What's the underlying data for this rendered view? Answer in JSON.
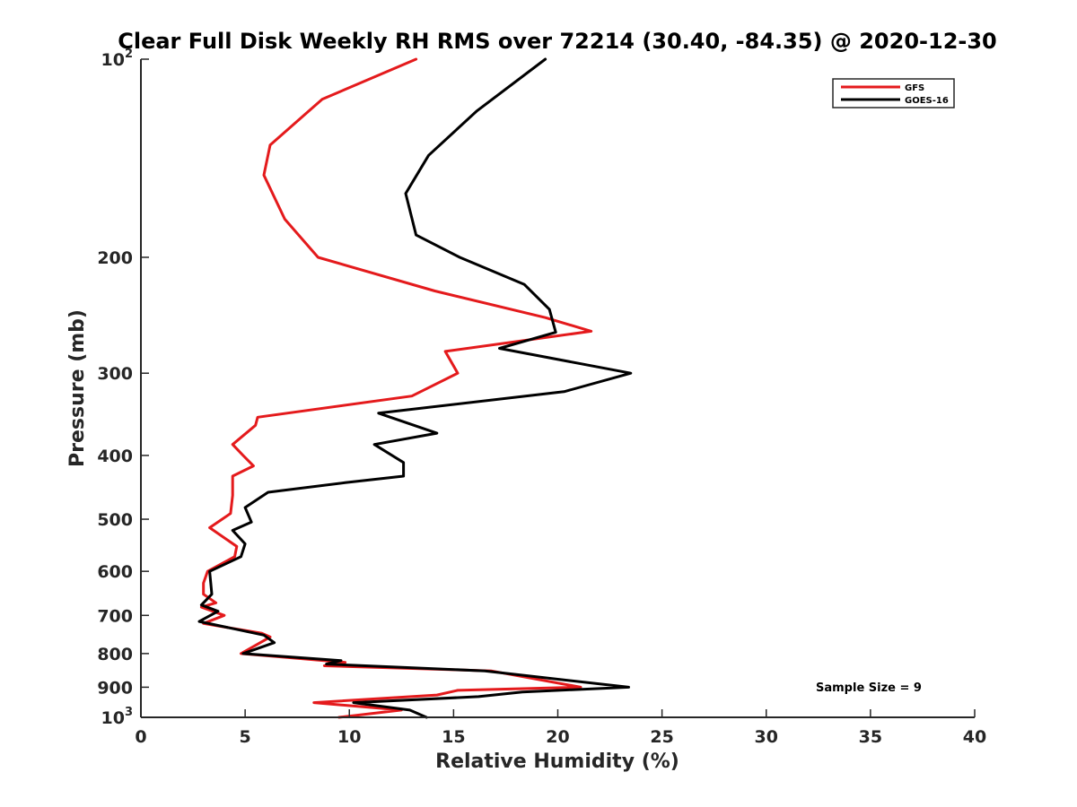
{
  "chart_data": {
    "type": "line",
    "title": "Clear Full Disk Weekly RH RMS over 72214 (30.40, -84.35) @ 2020-12-30",
    "xlabel": "Relative Humidity (%)",
    "ylabel": "Pressure (mb)",
    "xlim": [
      0,
      40
    ],
    "ylim": [
      100,
      1000
    ],
    "yscale": "log",
    "y_reversed": true,
    "grid": false,
    "legend_position": "top-right",
    "x_ticks": [
      {
        "value": 0,
        "label": "0"
      },
      {
        "value": 5,
        "label": "5"
      },
      {
        "value": 10,
        "label": "10"
      },
      {
        "value": 15,
        "label": "15"
      },
      {
        "value": 20,
        "label": "20"
      },
      {
        "value": 25,
        "label": "25"
      },
      {
        "value": 30,
        "label": "30"
      },
      {
        "value": 35,
        "label": "35"
      },
      {
        "value": 40,
        "label": "40"
      }
    ],
    "y_ticks": [
      {
        "value": 100,
        "base": "10",
        "exp": "2"
      },
      {
        "value": 200,
        "base": "200",
        "exp": ""
      },
      {
        "value": 300,
        "base": "300",
        "exp": ""
      },
      {
        "value": 400,
        "base": "400",
        "exp": ""
      },
      {
        "value": 500,
        "base": "500",
        "exp": ""
      },
      {
        "value": 600,
        "base": "600",
        "exp": ""
      },
      {
        "value": 700,
        "base": "700",
        "exp": ""
      },
      {
        "value": 800,
        "base": "800",
        "exp": ""
      },
      {
        "value": 900,
        "base": "900",
        "exp": ""
      },
      {
        "value": 1000,
        "base": "10",
        "exp": "3"
      }
    ],
    "annotation": "Sample Size = 9",
    "series": [
      {
        "name": "GFS",
        "color": "#e41a1c",
        "points": [
          [
            13.2,
            100
          ],
          [
            8.7,
            115
          ],
          [
            6.2,
            135
          ],
          [
            5.9,
            150
          ],
          [
            6.9,
            175
          ],
          [
            8.5,
            200
          ],
          [
            14.1,
            225
          ],
          [
            19.4,
            247
          ],
          [
            21.6,
            259
          ],
          [
            14.6,
            278
          ],
          [
            15.2,
            300
          ],
          [
            13.0,
            325
          ],
          [
            5.6,
            350
          ],
          [
            5.5,
            360
          ],
          [
            4.4,
            385
          ],
          [
            4.9,
            400
          ],
          [
            5.4,
            415
          ],
          [
            4.4,
            430
          ],
          [
            4.4,
            460
          ],
          [
            4.3,
            490
          ],
          [
            3.3,
            515
          ],
          [
            4.6,
            550
          ],
          [
            4.5,
            570
          ],
          [
            3.2,
            600
          ],
          [
            3.0,
            625
          ],
          [
            3.0,
            650
          ],
          [
            3.6,
            670
          ],
          [
            2.9,
            680
          ],
          [
            4.0,
            700
          ],
          [
            3.0,
            720
          ],
          [
            5.8,
            745
          ],
          [
            6.2,
            755
          ],
          [
            4.8,
            800
          ],
          [
            8.8,
            820
          ],
          [
            9.8,
            825
          ],
          [
            8.8,
            835
          ],
          [
            16.8,
            850
          ],
          [
            21.1,
            900
          ],
          [
            15.2,
            910
          ],
          [
            14.2,
            925
          ],
          [
            8.3,
            950
          ],
          [
            12.5,
            975
          ],
          [
            9.5,
            1000
          ]
        ]
      },
      {
        "name": "GOES-16",
        "color": "#000000",
        "points": [
          [
            19.4,
            100
          ],
          [
            16.1,
            120
          ],
          [
            13.8,
            140
          ],
          [
            12.7,
            160
          ],
          [
            13.2,
            185
          ],
          [
            15.3,
            200
          ],
          [
            18.4,
            220
          ],
          [
            19.6,
            240
          ],
          [
            19.9,
            260
          ],
          [
            17.2,
            275
          ],
          [
            23.5,
            300
          ],
          [
            20.3,
            320
          ],
          [
            11.4,
            345
          ],
          [
            14.2,
            370
          ],
          [
            11.2,
            385
          ],
          [
            12.6,
            410
          ],
          [
            12.6,
            430
          ],
          [
            9.8,
            440
          ],
          [
            6.1,
            455
          ],
          [
            5.0,
            480
          ],
          [
            5.3,
            505
          ],
          [
            4.4,
            520
          ],
          [
            5.0,
            545
          ],
          [
            4.8,
            570
          ],
          [
            3.3,
            600
          ],
          [
            3.4,
            650
          ],
          [
            2.9,
            675
          ],
          [
            3.7,
            690
          ],
          [
            2.8,
            715
          ],
          [
            5.9,
            750
          ],
          [
            6.4,
            770
          ],
          [
            4.9,
            800
          ],
          [
            9.6,
            820
          ],
          [
            8.9,
            830
          ],
          [
            16.5,
            850
          ],
          [
            23.4,
            900
          ],
          [
            18.3,
            915
          ],
          [
            16.2,
            930
          ],
          [
            10.2,
            950
          ],
          [
            12.9,
            975
          ],
          [
            13.7,
            1000
          ]
        ]
      }
    ]
  }
}
